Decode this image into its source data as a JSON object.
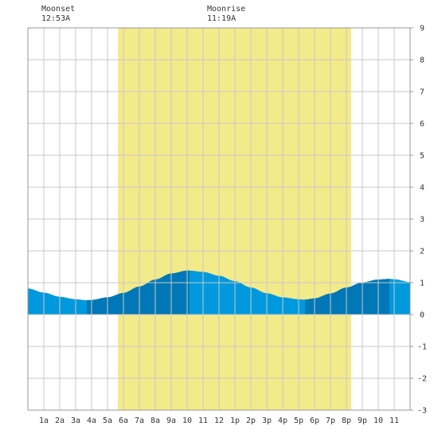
{
  "moon_events": [
    {
      "label": "Moonset",
      "time": "12:53A"
    },
    {
      "label": "Moonrise",
      "time": "11:19A"
    }
  ],
  "colors": {
    "daylight": "#f3ea8a",
    "water_light": "#0099dd",
    "water_dark": "#0077b6",
    "grid": "#c8c8c8",
    "border": "#999999",
    "background": "#ffffff"
  },
  "chart_data": {
    "type": "area",
    "title": "",
    "xlabel": "",
    "ylabel": "",
    "xlim": [
      0,
      24
    ],
    "ylim": [
      -3,
      9
    ],
    "y_ticks": [
      "9",
      "8",
      "7",
      "6",
      "5",
      "4",
      "3",
      "2",
      "1",
      "0",
      "-1",
      "-2",
      "-3"
    ],
    "x_ticks": [
      {
        "hour": 1,
        "label": "1a"
      },
      {
        "hour": 2,
        "label": "2a"
      },
      {
        "hour": 3,
        "label": "3a"
      },
      {
        "hour": 4,
        "label": "4a"
      },
      {
        "hour": 5,
        "label": "5a"
      },
      {
        "hour": 6,
        "label": "6a"
      },
      {
        "hour": 7,
        "label": "7a"
      },
      {
        "hour": 8,
        "label": "8a"
      },
      {
        "hour": 9,
        "label": "9a"
      },
      {
        "hour": 10,
        "label": "10"
      },
      {
        "hour": 11,
        "label": "11"
      },
      {
        "hour": 12,
        "label": "12"
      },
      {
        "hour": 13,
        "label": "1p"
      },
      {
        "hour": 14,
        "label": "2p"
      },
      {
        "hour": 15,
        "label": "3p"
      },
      {
        "hour": 16,
        "label": "4p"
      },
      {
        "hour": 17,
        "label": "5p"
      },
      {
        "hour": 18,
        "label": "6p"
      },
      {
        "hour": 19,
        "label": "7p"
      },
      {
        "hour": 20,
        "label": "8p"
      },
      {
        "hour": 21,
        "label": "9p"
      },
      {
        "hour": 22,
        "label": "10"
      },
      {
        "hour": 23,
        "label": "11"
      }
    ],
    "daylight": {
      "start_hour": 5.65,
      "end_hour": 20.3
    },
    "tide_extrema": [
      {
        "hour": 3.7,
        "height": 0.45,
        "kind": "low"
      },
      {
        "hour": 10.15,
        "height": 1.38,
        "kind": "high"
      },
      {
        "hour": 17.4,
        "height": 0.47,
        "kind": "low"
      },
      {
        "hour": 22.7,
        "height": 1.12,
        "kind": "high"
      }
    ],
    "tide_series": {
      "x": [
        0,
        1,
        2,
        3,
        3.7,
        4,
        5,
        6,
        7,
        8,
        9,
        10,
        10.15,
        11,
        12,
        13,
        14,
        15,
        16,
        17,
        17.4,
        18,
        19,
        20,
        21,
        22,
        22.7,
        23,
        24
      ],
      "y": [
        0.82,
        0.69,
        0.56,
        0.48,
        0.45,
        0.46,
        0.54,
        0.68,
        0.88,
        1.1,
        1.29,
        1.38,
        1.38,
        1.34,
        1.22,
        1.05,
        0.85,
        0.67,
        0.54,
        0.48,
        0.47,
        0.51,
        0.66,
        0.85,
        1.01,
        1.1,
        1.12,
        1.11,
        1.02
      ]
    }
  }
}
